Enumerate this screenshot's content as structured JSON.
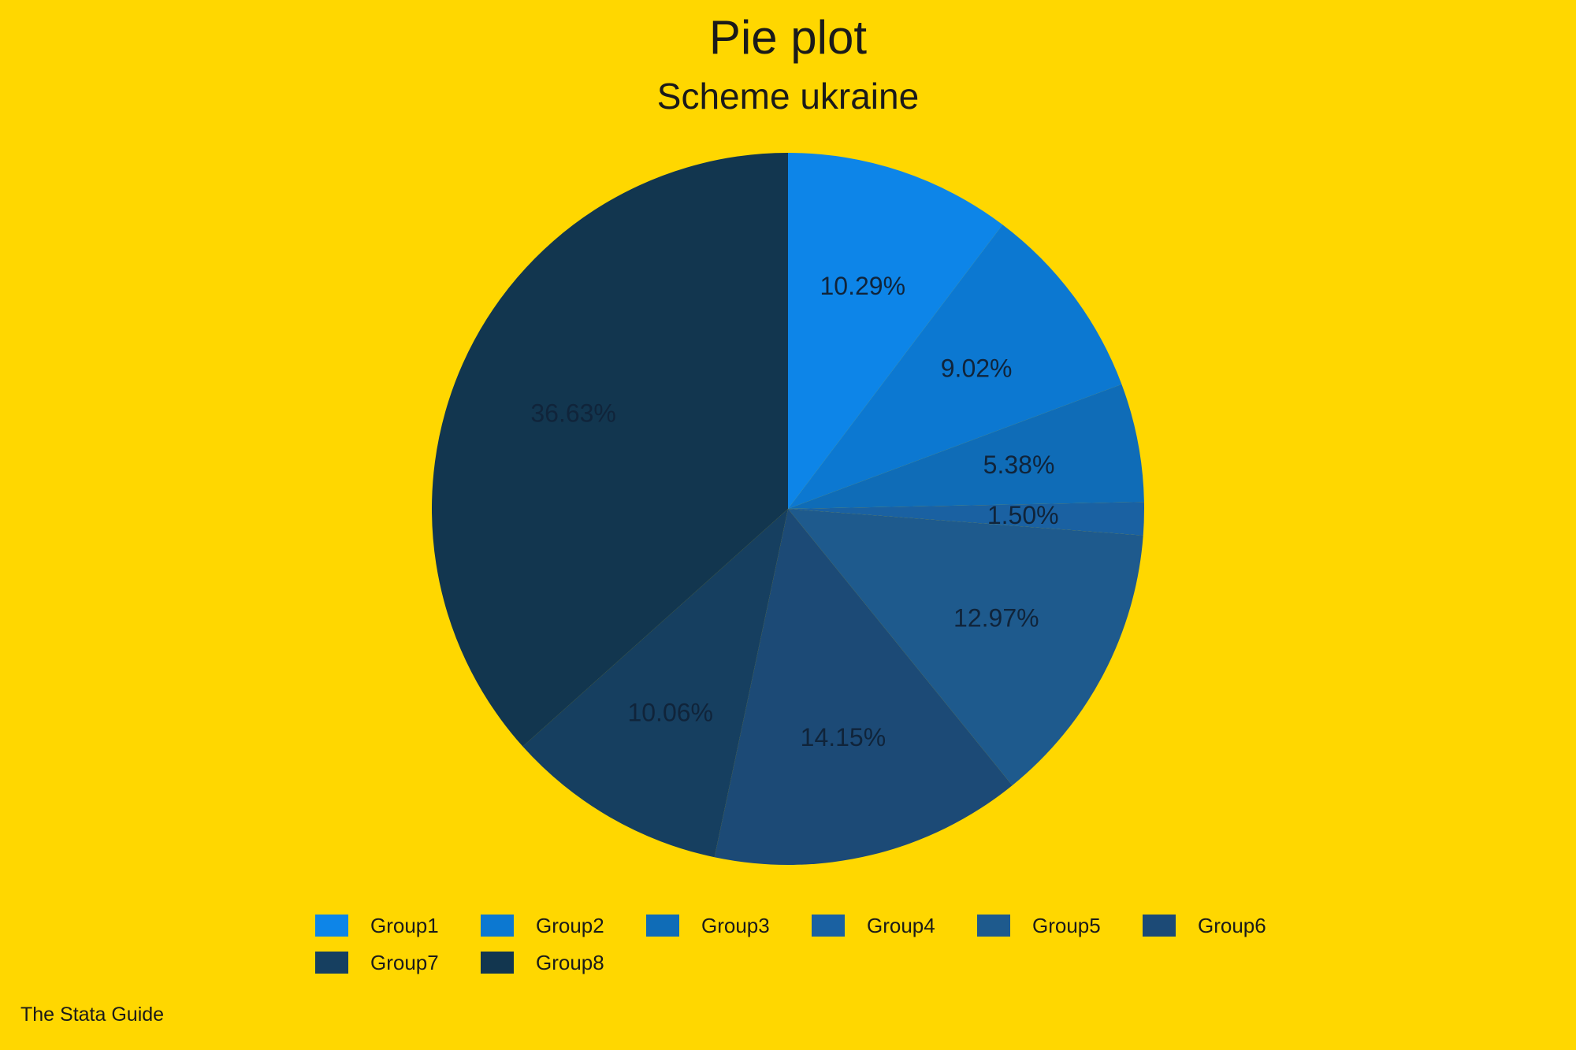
{
  "chart_data": {
    "type": "pie",
    "title": "Pie plot",
    "subtitle": "Scheme ukraine",
    "slices": [
      {
        "name": "Group1",
        "value": 10.29,
        "label": "10.29%",
        "color": "#0D85E8"
      },
      {
        "name": "Group2",
        "value": 9.02,
        "label": "9.02%",
        "color": "#0C78D1"
      },
      {
        "name": "Group3",
        "value": 5.38,
        "label": "5.38%",
        "color": "#0F6CB7"
      },
      {
        "name": "Group4",
        "value": 1.5,
        "label": "1.50%",
        "color": "#1A61A2"
      },
      {
        "name": "Group5",
        "value": 12.97,
        "label": "12.97%",
        "color": "#1E5A8D"
      },
      {
        "name": "Group6",
        "value": 14.15,
        "label": "14.15%",
        "color": "#1C4A76"
      },
      {
        "name": "Group7",
        "value": 10.06,
        "label": "10.06%",
        "color": "#163F60"
      },
      {
        "name": "Group8",
        "value": 36.63,
        "label": "36.63%",
        "color": "#12364F"
      }
    ],
    "start_angle": "12 o'clock",
    "direction": "clockwise",
    "legend_position": "bottom"
  },
  "background_color": "#FFD700",
  "footer_note": "The Stata Guide"
}
